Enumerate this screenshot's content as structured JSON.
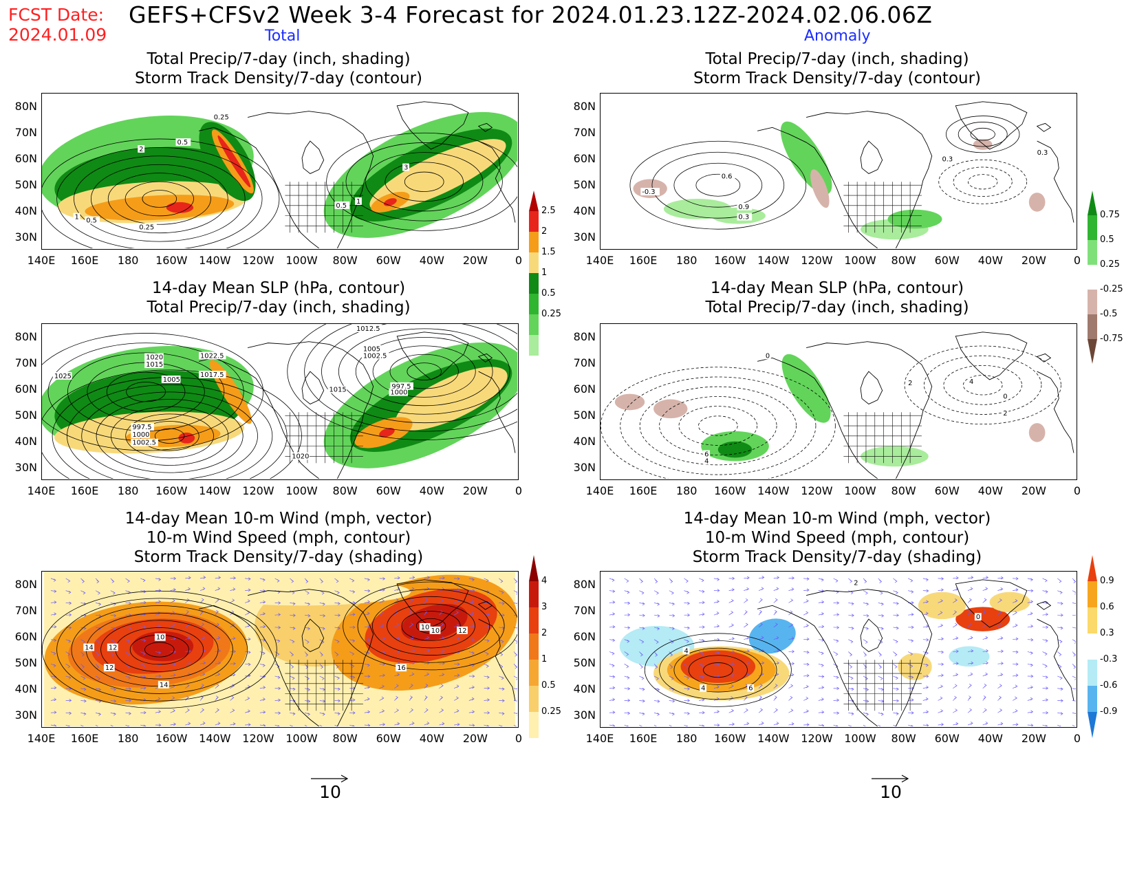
{
  "header": {
    "fcst_label": "FCST Date:",
    "fcst_date": "2024.01.09",
    "title": "GEFS+CFSv2 Week 3-4 Forecast for 2024.01.23.12Z-2024.02.06.06Z",
    "col_total": "Total",
    "col_anomaly": "Anomaly"
  },
  "axes": {
    "lat_labels": [
      "80N",
      "70N",
      "60N",
      "50N",
      "40N",
      "30N"
    ],
    "lon_labels": [
      "140E",
      "160E",
      "180",
      "160W",
      "140W",
      "120W",
      "100W",
      "80W",
      "60W",
      "40W",
      "20W",
      "0"
    ]
  },
  "panels": {
    "p1": {
      "line1": "Total Precip/7-day (inch, shading)",
      "line2": "Storm Track Density/7-day (contour)"
    },
    "p2": {
      "line1": "Total Precip/7-day (inch, shading)",
      "line2": "Storm Track Density/7-day (contour)"
    },
    "p3": {
      "line1": "14-day Mean SLP (hPa, contour)",
      "line2": "Total Precip/7-day (inch, shading)"
    },
    "p4": {
      "line1": "14-day Mean SLP (hPa, contour)",
      "line2": "Total Precip/7-day (inch, shading)"
    },
    "p5": {
      "line1": "14-day Mean 10-m Wind (mph, vector)",
      "line2": "10-m Wind Speed (mph, contour)",
      "line3": "Storm Track Density/7-day (shading)"
    },
    "p6": {
      "line1": "14-day Mean 10-m Wind (mph, vector)",
      "line2": "10-m Wind Speed (mph, contour)",
      "line3": "Storm Track Density/7-day (shading)"
    }
  },
  "colorbars": {
    "precip_total": {
      "labels": [
        "2.5",
        "2",
        "1.5",
        "1",
        "0.5",
        "0.25"
      ],
      "colors": [
        "#b30000",
        "#e8251b",
        "#f59d19",
        "#f8d97a",
        "#0f8a14",
        "#2fb530",
        "#62d45a",
        "#a9ec9c",
        "#ffffff"
      ]
    },
    "precip_anom": {
      "labels": [
        "0.75",
        "0.5",
        "0.25",
        "-0.25",
        "-0.5",
        "-0.75"
      ],
      "colors": [
        "#0f8a14",
        "#2fb530",
        "#7fe07a",
        "#ffffff",
        "#d6b3aa",
        "#a07a6d",
        "#6b4636"
      ]
    },
    "track_total": {
      "labels": [
        "4",
        "3",
        "2",
        "1",
        "0.5",
        "0.25"
      ],
      "colors": [
        "#8c0000",
        "#c81a0c",
        "#e8400f",
        "#f07818",
        "#f6a732",
        "#f8cf6a",
        "#fff0b0",
        "#ffffff"
      ]
    },
    "track_anom": {
      "labels": [
        "0.9",
        "0.6",
        "0.3",
        "-0.3",
        "-0.6",
        "-0.9"
      ],
      "colors": [
        "#e8400f",
        "#f7a51c",
        "#fbd96a",
        "#ffffff",
        "#b4ebf5",
        "#58b4ef",
        "#1e78d6"
      ]
    }
  },
  "vector_reference": {
    "value": "10"
  },
  "field_colors": {
    "green_light": "#a9ec9c",
    "green_mid": "#62d45a",
    "green_dark": "#0f8a14",
    "tan": "#f8d97a",
    "orange": "#f59d19",
    "red": "#e8251b",
    "darkred": "#b30000",
    "brown_light": "#d6b3aa",
    "wind_vector": "#6a5cff"
  }
}
